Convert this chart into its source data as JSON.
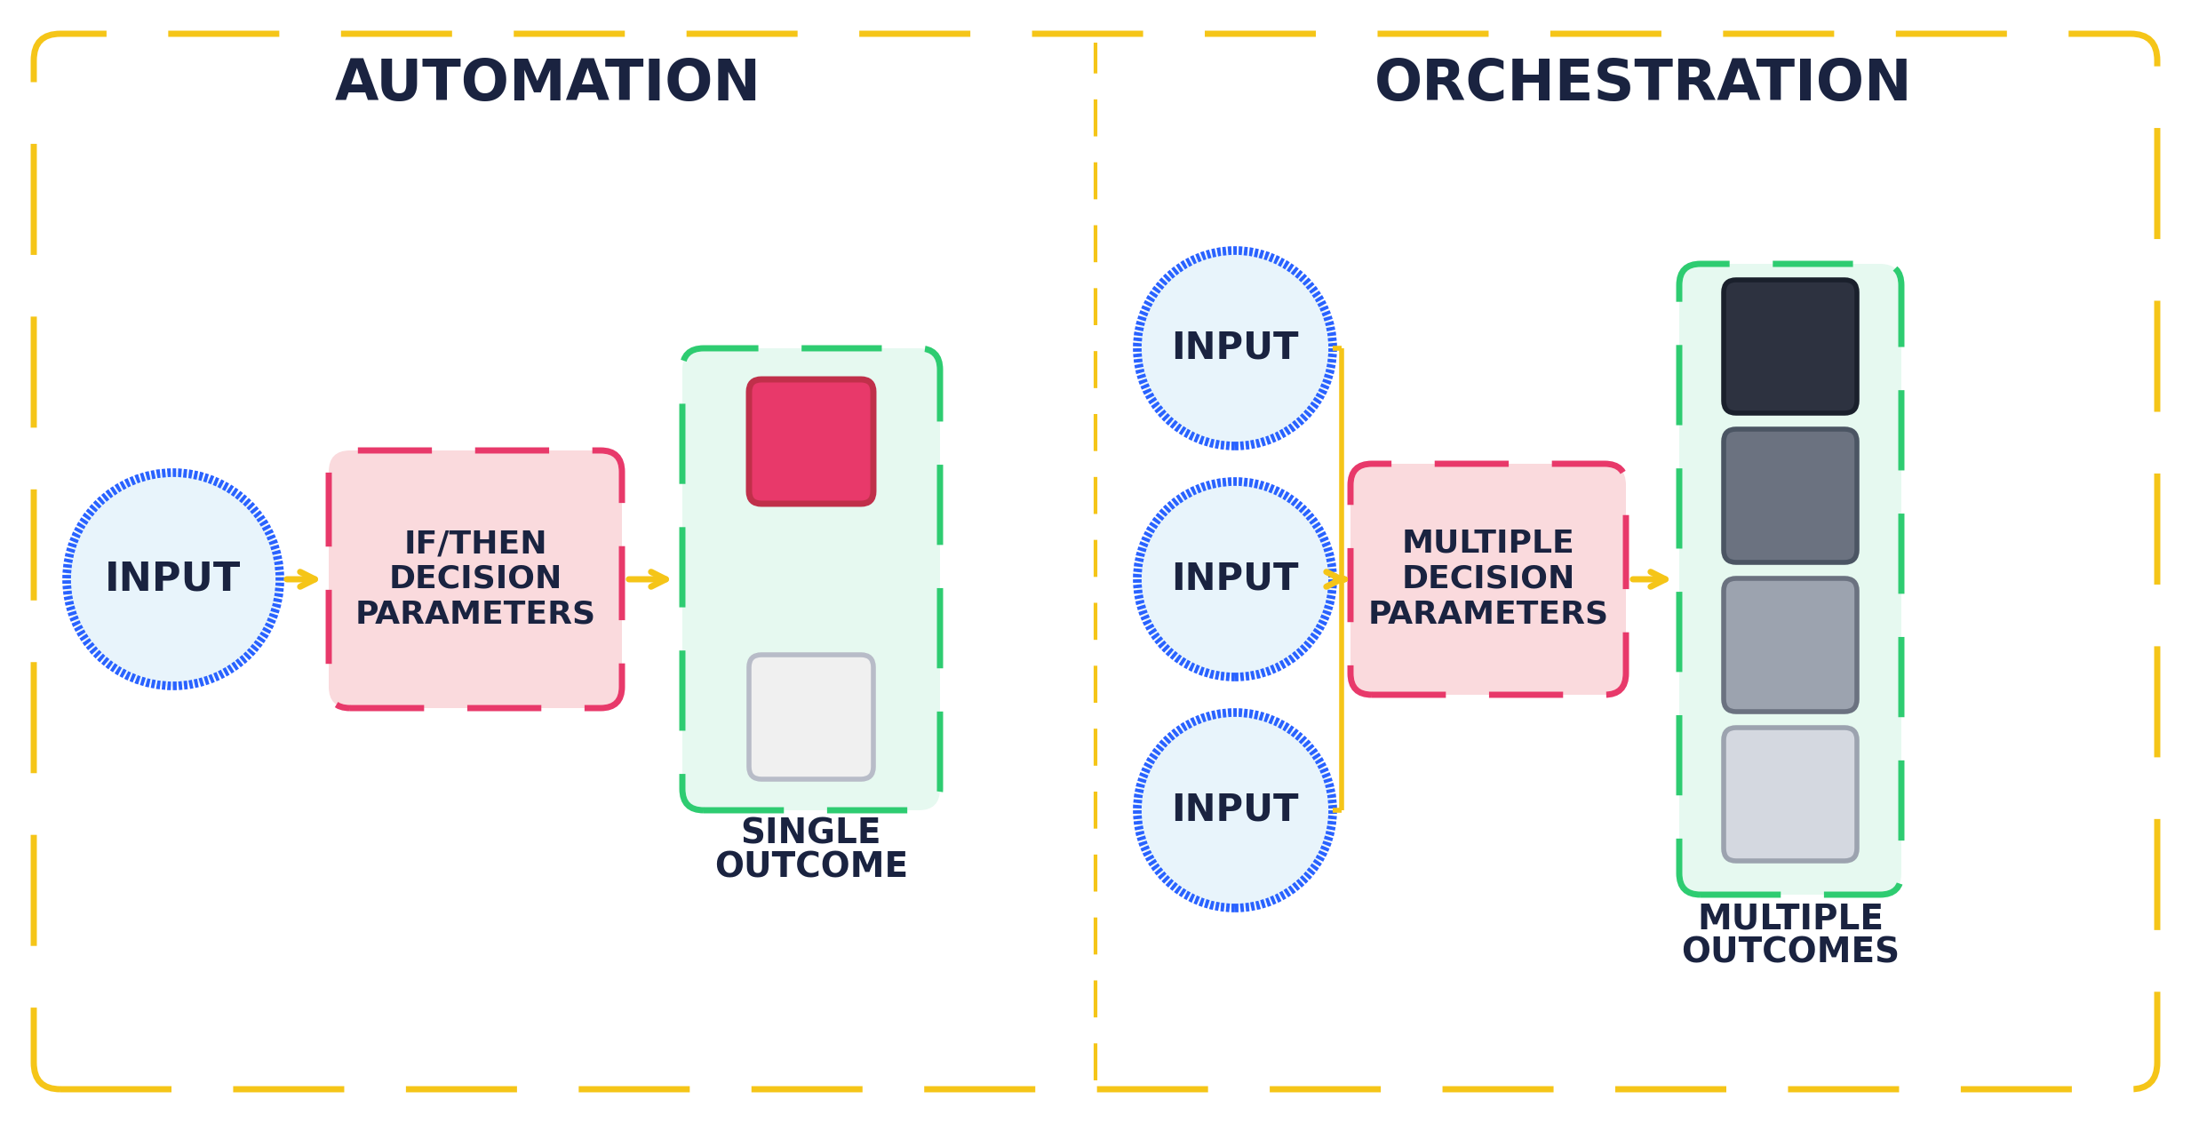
{
  "bg_color": "#ffffff",
  "outer_border_color": "#F5C518",
  "divider_color": "#F5C518",
  "input_circle_fill": "#E8F4FB",
  "input_circle_border": "#2962FF",
  "input_text_color": "#1a2340",
  "decision_fill": "#FADADD",
  "decision_border": "#E8396A",
  "decision_text_color": "#1a2340",
  "outcome_container_fill": "#E6F9F0",
  "outcome_container_border": "#2ECC71",
  "arrow_color": "#F5C518",
  "section_title_color": "#1a2340",
  "label_text_color": "#1a2340",
  "automation_title": "AUTOMATION",
  "orchestration_title": "ORCHESTRATION",
  "input_label": "INPUT",
  "auto_decision_lines": [
    "IF/THEN",
    "DECISION",
    "PARAMETERS"
  ],
  "orch_decision_lines": [
    "MULTIPLE",
    "DECISION",
    "PARAMETERS"
  ],
  "auto_outcome_label": [
    "SINGLE",
    "OUTCOME"
  ],
  "orch_outcome_label": [
    "MULTIPLE",
    "OUTCOMES"
  ],
  "auto_sq_top_fill": "#E8396A",
  "auto_sq_top_edge": "#c0304a",
  "auto_sq_bot_fill": "#f0f0f0",
  "auto_sq_bot_edge": "#b8bcc8",
  "orch_sq_fills": [
    "#2d3240",
    "#6b7280",
    "#9ca3af",
    "#d4d8e0"
  ],
  "orch_sq_edges": [
    "#1a202c",
    "#4b5563",
    "#6b7280",
    "#9ca3af"
  ],
  "orch_sq_last_fill": "#ffffff",
  "orch_sq_last_edge": "#b8bcc8"
}
